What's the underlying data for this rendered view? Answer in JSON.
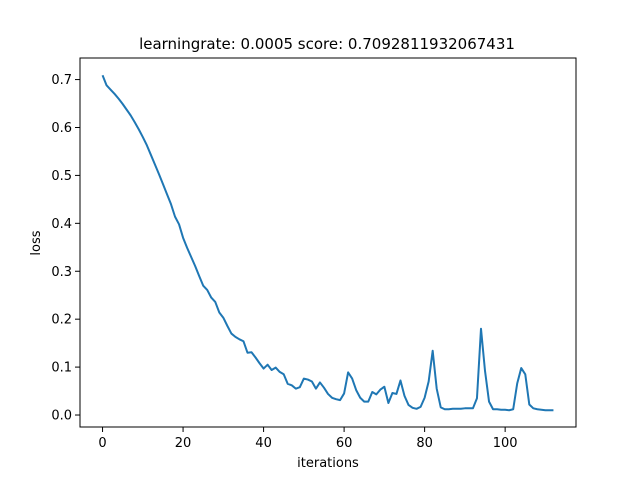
{
  "chart_data": {
    "type": "line",
    "title": "learningrate: 0.0005 score: 0.7092811932067431",
    "xlabel": "iterations",
    "ylabel": "loss",
    "xlim": [
      -5.6,
      117.6
    ],
    "ylim": [
      -0.025,
      0.745
    ],
    "xticks": [
      0,
      20,
      40,
      60,
      80,
      100
    ],
    "yticks": [
      0.0,
      0.1,
      0.2,
      0.3,
      0.4,
      0.5,
      0.6,
      0.7
    ],
    "xtick_labels": [
      "0",
      "20",
      "40",
      "60",
      "80",
      "100"
    ],
    "ytick_labels": [
      "0.0",
      "0.1",
      "0.2",
      "0.3",
      "0.4",
      "0.5",
      "0.6",
      "0.7"
    ],
    "grid": false,
    "line_color": "#1f77b4",
    "series": [
      {
        "x": [
          0,
          1,
          2,
          3,
          4,
          5,
          6,
          7,
          8,
          9,
          10,
          11,
          12,
          13,
          14,
          15,
          16,
          17,
          18,
          19,
          20,
          21,
          22,
          23,
          24,
          25,
          26,
          27,
          28,
          29,
          30,
          31,
          32,
          33,
          34,
          35,
          36,
          37,
          38,
          39,
          40,
          41,
          42,
          43,
          44,
          45,
          46,
          47,
          48,
          49,
          50,
          51,
          52,
          53,
          54,
          55,
          56,
          57,
          58,
          59,
          60,
          61,
          62,
          63,
          64,
          65,
          66,
          67,
          68,
          69,
          70,
          71,
          72,
          73,
          74,
          75,
          76,
          77,
          78,
          79,
          80,
          81,
          82,
          83,
          84,
          85,
          86,
          87,
          88,
          89,
          90,
          91,
          92,
          93,
          94,
          95,
          96,
          97,
          98,
          99,
          100,
          101,
          102,
          103,
          104,
          105,
          106,
          107,
          108,
          109,
          110,
          111,
          112
        ],
        "values": [
          0.709,
          0.688,
          0.679,
          0.67,
          0.66,
          0.649,
          0.637,
          0.625,
          0.611,
          0.596,
          0.58,
          0.563,
          0.543,
          0.523,
          0.503,
          0.482,
          0.461,
          0.44,
          0.414,
          0.398,
          0.37,
          0.349,
          0.33,
          0.311,
          0.29,
          0.27,
          0.261,
          0.245,
          0.236,
          0.214,
          0.203,
          0.186,
          0.17,
          0.163,
          0.158,
          0.154,
          0.13,
          0.131,
          0.12,
          0.108,
          0.097,
          0.105,
          0.094,
          0.099,
          0.09,
          0.085,
          0.065,
          0.062,
          0.055,
          0.058,
          0.076,
          0.074,
          0.07,
          0.055,
          0.068,
          0.057,
          0.044,
          0.036,
          0.033,
          0.031,
          0.045,
          0.089,
          0.076,
          0.052,
          0.036,
          0.028,
          0.028,
          0.048,
          0.043,
          0.053,
          0.059,
          0.025,
          0.046,
          0.044,
          0.072,
          0.04,
          0.021,
          0.015,
          0.013,
          0.017,
          0.036,
          0.07,
          0.134,
          0.055,
          0.016,
          0.012,
          0.012,
          0.013,
          0.013,
          0.013,
          0.014,
          0.014,
          0.014,
          0.035,
          0.18,
          0.092,
          0.028,
          0.012,
          0.012,
          0.011,
          0.011,
          0.01,
          0.012,
          0.066,
          0.098,
          0.085,
          0.022,
          0.014,
          0.012,
          0.011,
          0.01,
          0.01,
          0.01
        ]
      }
    ]
  }
}
